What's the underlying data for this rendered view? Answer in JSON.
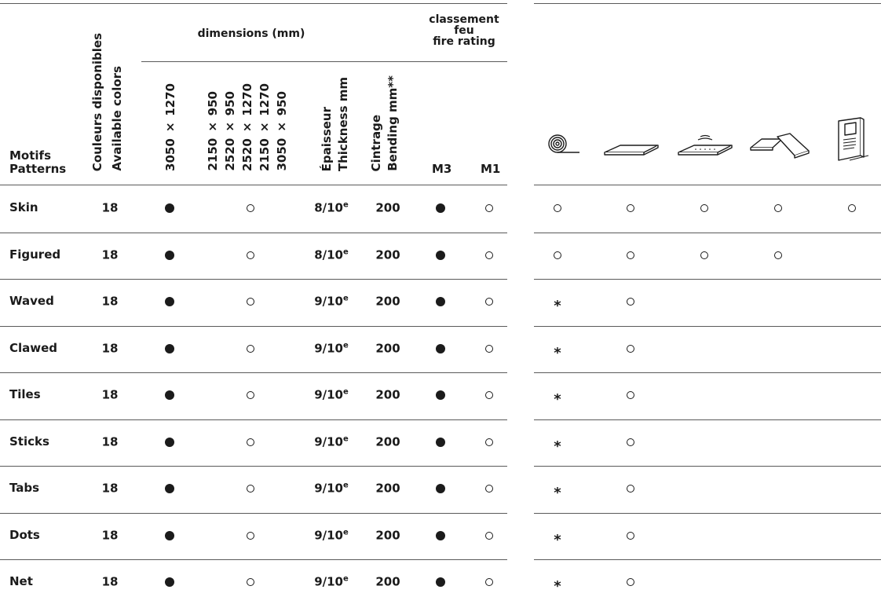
{
  "header": {
    "motifs": "Motifs",
    "patterns": "Patterns",
    "colors_fr": "Couleurs disponibles",
    "colors_en": "Available colors",
    "dimensions_group": "dimensions (mm)",
    "dim_3050": "3050 × 1270",
    "dim_2150_950": "2150 × 950",
    "dim_2520_950": "2520 × 950",
    "dim_2520_1270": "2520 × 1270",
    "dim_2150_1270": "2150 × 1270",
    "dim_3050_950": "3050 × 950",
    "thickness_fr": "Épaisseur",
    "thickness_en": "Thickness mm",
    "bending_fr": "Cintrage",
    "bending_en": "Bending mm**",
    "fire_l1": "classement",
    "fire_l2": "feu",
    "fire_l3": "fire rating",
    "m3": "M3",
    "m1": "M1"
  },
  "application_icons": [
    "roll-icon",
    "flat-panel-icon",
    "acoustic-panel-icon",
    "angled-panels-icon",
    "wall-display-icon"
  ],
  "rows": [
    {
      "name": "Skin",
      "colors": "18",
      "thick": "8/10",
      "sup": "e",
      "bend": "200",
      "apps": [
        "o",
        "o",
        "o",
        "o",
        "o"
      ]
    },
    {
      "name": "Figured",
      "colors": "18",
      "thick": "8/10",
      "sup": "e",
      "bend": "200",
      "apps": [
        "o",
        "o",
        "o",
        "o",
        ""
      ]
    },
    {
      "name": "Waved",
      "colors": "18",
      "thick": "9/10",
      "sup": "e",
      "bend": "200",
      "apps": [
        "*",
        "o",
        "",
        "",
        ""
      ]
    },
    {
      "name": "Clawed",
      "colors": "18",
      "thick": "9/10",
      "sup": "e",
      "bend": "200",
      "apps": [
        "*",
        "o",
        "",
        "",
        ""
      ]
    },
    {
      "name": "Tiles",
      "colors": "18",
      "thick": "9/10",
      "sup": "e",
      "bend": "200",
      "apps": [
        "*",
        "o",
        "",
        "",
        ""
      ]
    },
    {
      "name": "Sticks",
      "colors": "18",
      "thick": "9/10",
      "sup": "e",
      "bend": "200",
      "apps": [
        "*",
        "o",
        "",
        "",
        ""
      ]
    },
    {
      "name": "Tabs",
      "colors": "18",
      "thick": "9/10",
      "sup": "e",
      "bend": "200",
      "apps": [
        "*",
        "o",
        "",
        "",
        ""
      ]
    },
    {
      "name": "Dots",
      "colors": "18",
      "thick": "9/10",
      "sup": "e",
      "bend": "200",
      "apps": [
        "*",
        "o",
        "",
        "",
        ""
      ]
    },
    {
      "name": "Net",
      "colors": "18",
      "thick": "9/10",
      "sup": "e",
      "bend": "200",
      "apps": [
        "*",
        "o",
        "",
        "",
        ""
      ]
    }
  ]
}
